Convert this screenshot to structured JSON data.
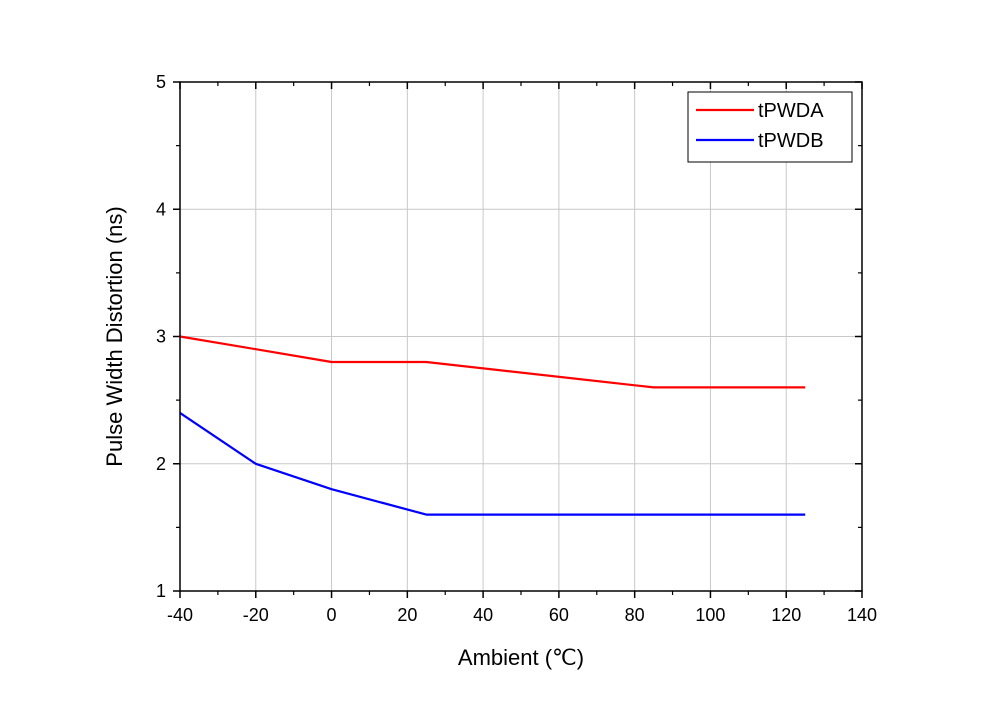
{
  "chart_data": {
    "type": "line",
    "title": "",
    "xlabel": "Ambient (℃)",
    "ylabel": "Pulse Width Distortion (ns)",
    "xlim": [
      -40,
      140
    ],
    "ylim": [
      1,
      5
    ],
    "x_ticks": [
      -40,
      -20,
      0,
      20,
      40,
      60,
      80,
      100,
      120,
      140
    ],
    "y_ticks": [
      1,
      2,
      3,
      4,
      5
    ],
    "grid": true,
    "legend_position": "top-right",
    "series": [
      {
        "name": "tPWDA",
        "color": "#ff0000",
        "x": [
          -40,
          -20,
          0,
          25,
          85,
          125
        ],
        "y": [
          3.0,
          2.9,
          2.8,
          2.8,
          2.6,
          2.6
        ]
      },
      {
        "name": "tPWDB",
        "color": "#0000ff",
        "x": [
          -40,
          -20,
          0,
          25,
          85,
          125
        ],
        "y": [
          2.4,
          2.0,
          1.8,
          1.6,
          1.6,
          1.6
        ]
      }
    ]
  }
}
